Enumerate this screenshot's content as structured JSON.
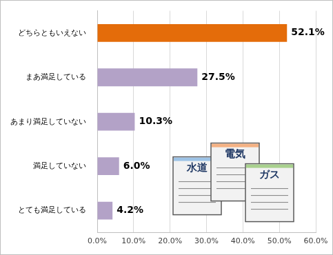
{
  "chart_data": {
    "type": "bar",
    "orientation": "horizontal",
    "categories": [
      "どちらともいえない",
      "まあ満足している",
      "あまり満足していない",
      "満足していない",
      "とても満足している"
    ],
    "values": [
      52.1,
      27.5,
      10.3,
      6.0,
      4.2
    ],
    "value_labels": [
      "52.1%",
      "27.5%",
      "10.3%",
      "6.0%",
      "4.2%"
    ],
    "colors": [
      "#e46c0a",
      "#b3a2c7",
      "#b3a2c7",
      "#b3a2c7",
      "#b3a2c7"
    ],
    "xlim": [
      0,
      60
    ],
    "xticks": [
      {
        "value": 0,
        "label": "0.0%"
      },
      {
        "value": 10,
        "label": "10.0%"
      },
      {
        "value": 20,
        "label": "20.0%"
      },
      {
        "value": 30,
        "label": "30.0%"
      },
      {
        "value": 40,
        "label": "40.0%"
      },
      {
        "value": 50,
        "label": "50.0%"
      },
      {
        "value": 60,
        "label": "60.0%"
      }
    ],
    "grid": true,
    "data_labels": true,
    "annotations": [
      "水道",
      "電気",
      "ガス"
    ]
  }
}
